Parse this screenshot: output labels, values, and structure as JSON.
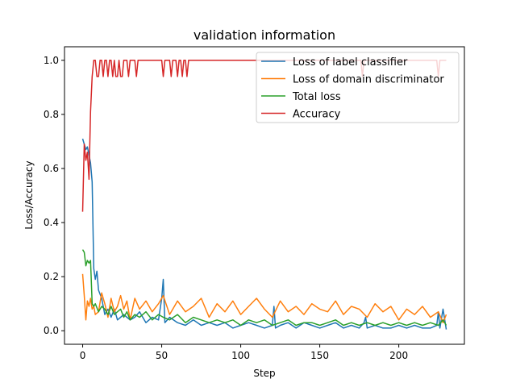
{
  "chart_data": {
    "type": "line",
    "title": "validation information",
    "xlabel": "Step",
    "ylabel": "Loss/Accuracy",
    "xlim": [
      -11.5,
      241.5
    ],
    "ylim": [
      -0.05,
      1.05
    ],
    "xticks": [
      0,
      50,
      100,
      150,
      200
    ],
    "yticks": [
      0.0,
      0.2,
      0.4,
      0.6,
      0.8,
      1.0
    ],
    "xtick_labels": [
      "0",
      "50",
      "100",
      "150",
      "200"
    ],
    "ytick_labels": [
      "0.0",
      "0.2",
      "0.4",
      "0.6",
      "0.8",
      "1.0"
    ],
    "grid": false,
    "legend_position": "top-right",
    "series": [
      {
        "name": "Loss of label classifier",
        "color": "#1f77b4",
        "x": [
          0,
          1,
          2,
          3,
          4,
          5,
          6,
          7,
          8,
          9,
          10,
          12,
          14,
          16,
          18,
          20,
          22,
          24,
          26,
          28,
          30,
          33,
          36,
          40,
          44,
          48,
          50,
          51,
          52,
          55,
          60,
          65,
          70,
          75,
          80,
          85,
          90,
          95,
          100,
          105,
          110,
          115,
          120,
          121,
          122,
          125,
          130,
          135,
          140,
          145,
          150,
          155,
          160,
          165,
          170,
          175,
          178,
          179,
          180,
          185,
          190,
          195,
          200,
          205,
          210,
          215,
          220,
          224,
          225,
          226,
          228,
          230
        ],
        "y": [
          0.71,
          0.69,
          0.67,
          0.68,
          0.65,
          0.62,
          0.55,
          0.23,
          0.19,
          0.22,
          0.15,
          0.12,
          0.06,
          0.08,
          0.05,
          0.08,
          0.04,
          0.05,
          0.06,
          0.05,
          0.04,
          0.05,
          0.07,
          0.03,
          0.05,
          0.04,
          0.12,
          0.19,
          0.03,
          0.05,
          0.03,
          0.02,
          0.04,
          0.02,
          0.03,
          0.02,
          0.03,
          0.01,
          0.02,
          0.03,
          0.02,
          0.01,
          0.02,
          0.09,
          0.01,
          0.02,
          0.03,
          0.01,
          0.03,
          0.02,
          0.01,
          0.02,
          0.03,
          0.01,
          0.02,
          0.01,
          0.03,
          0.05,
          0.01,
          0.02,
          0.01,
          0.01,
          0.02,
          0.01,
          0.02,
          0.01,
          0.01,
          0.02,
          0.07,
          0.01,
          0.08,
          0.005
        ]
      },
      {
        "name": "Loss of domain discriminator",
        "color": "#ff7f0e",
        "x": [
          0,
          1,
          2,
          3,
          4,
          5,
          6,
          7,
          8,
          10,
          12,
          14,
          16,
          18,
          20,
          22,
          24,
          26,
          28,
          30,
          33,
          36,
          40,
          44,
          48,
          51,
          55,
          60,
          65,
          70,
          75,
          80,
          85,
          90,
          95,
          100,
          105,
          110,
          115,
          120,
          125,
          130,
          135,
          140,
          145,
          150,
          155,
          160,
          165,
          170,
          175,
          180,
          185,
          190,
          195,
          200,
          205,
          210,
          215,
          220,
          225,
          228,
          230
        ],
        "y": [
          0.21,
          0.13,
          0.04,
          0.11,
          0.09,
          0.12,
          0.08,
          0.09,
          0.06,
          0.07,
          0.14,
          0.1,
          0.05,
          0.12,
          0.07,
          0.09,
          0.13,
          0.08,
          0.11,
          0.04,
          0.12,
          0.08,
          0.11,
          0.07,
          0.1,
          0.13,
          0.06,
          0.11,
          0.07,
          0.09,
          0.12,
          0.05,
          0.1,
          0.07,
          0.11,
          0.06,
          0.09,
          0.12,
          0.08,
          0.05,
          0.11,
          0.07,
          0.09,
          0.06,
          0.1,
          0.08,
          0.07,
          0.11,
          0.06,
          0.09,
          0.08,
          0.05,
          0.1,
          0.07,
          0.09,
          0.04,
          0.08,
          0.06,
          0.09,
          0.05,
          0.07,
          0.03,
          0.06
        ]
      },
      {
        "name": "Total loss",
        "color": "#2ca02c",
        "x": [
          0,
          1,
          2,
          3,
          4,
          5,
          6,
          7,
          8,
          10,
          12,
          14,
          16,
          18,
          20,
          22,
          24,
          26,
          28,
          30,
          33,
          36,
          40,
          44,
          48,
          51,
          55,
          60,
          65,
          70,
          75,
          80,
          85,
          90,
          95,
          100,
          105,
          110,
          115,
          120,
          125,
          130,
          135,
          140,
          145,
          150,
          155,
          160,
          165,
          170,
          175,
          180,
          185,
          190,
          195,
          200,
          205,
          210,
          215,
          220,
          225,
          228,
          230
        ],
        "y": [
          0.3,
          0.29,
          0.24,
          0.26,
          0.25,
          0.26,
          0.1,
          0.09,
          0.1,
          0.07,
          0.09,
          0.08,
          0.06,
          0.09,
          0.06,
          0.07,
          0.08,
          0.05,
          0.07,
          0.04,
          0.06,
          0.05,
          0.07,
          0.04,
          0.06,
          0.05,
          0.04,
          0.06,
          0.03,
          0.05,
          0.04,
          0.03,
          0.04,
          0.03,
          0.04,
          0.02,
          0.04,
          0.03,
          0.04,
          0.02,
          0.03,
          0.04,
          0.02,
          0.03,
          0.03,
          0.02,
          0.03,
          0.04,
          0.02,
          0.03,
          0.02,
          0.03,
          0.02,
          0.03,
          0.02,
          0.03,
          0.02,
          0.03,
          0.02,
          0.03,
          0.02,
          0.04,
          0.02
        ]
      },
      {
        "name": "Accuracy",
        "color": "#d62728",
        "x": [
          0,
          1,
          2,
          3,
          4,
          5,
          6,
          7,
          8,
          9,
          10,
          11,
          12,
          13,
          14,
          15,
          16,
          17,
          18,
          19,
          20,
          21,
          22,
          23,
          24,
          25,
          26,
          27,
          28,
          29,
          30,
          31,
          32,
          33,
          34,
          35,
          40,
          45,
          50,
          51,
          52,
          53,
          54,
          55,
          56,
          57,
          58,
          59,
          60,
          61,
          62,
          63,
          64,
          65,
          66,
          67,
          68,
          70,
          80,
          90,
          100,
          110,
          120,
          130,
          140,
          150,
          160,
          170,
          176,
          177,
          178,
          180,
          190,
          200,
          210,
          220,
          224,
          225,
          226,
          227,
          228,
          229,
          230
        ],
        "y": [
          0.44,
          0.69,
          0.63,
          0.66,
          0.56,
          0.81,
          0.94,
          1.0,
          1.0,
          0.94,
          0.94,
          1.0,
          1.0,
          0.94,
          1.0,
          1.0,
          0.94,
          1.0,
          1.0,
          0.94,
          1.0,
          0.94,
          0.94,
          1.0,
          0.94,
          0.94,
          1.0,
          1.0,
          1.0,
          0.94,
          1.0,
          1.0,
          1.0,
          1.0,
          0.94,
          1.0,
          1.0,
          1.0,
          1.0,
          0.94,
          1.0,
          1.0,
          1.0,
          1.0,
          0.94,
          1.0,
          1.0,
          1.0,
          0.94,
          1.0,
          1.0,
          0.94,
          1.0,
          1.0,
          0.94,
          1.0,
          1.0,
          1.0,
          1.0,
          1.0,
          1.0,
          1.0,
          1.0,
          1.0,
          1.0,
          1.0,
          1.0,
          1.0,
          1.0,
          0.94,
          1.0,
          1.0,
          1.0,
          1.0,
          1.0,
          1.0,
          1.0,
          0.94,
          1.0,
          1.0,
          1.0,
          1.0,
          1.0
        ]
      }
    ]
  }
}
